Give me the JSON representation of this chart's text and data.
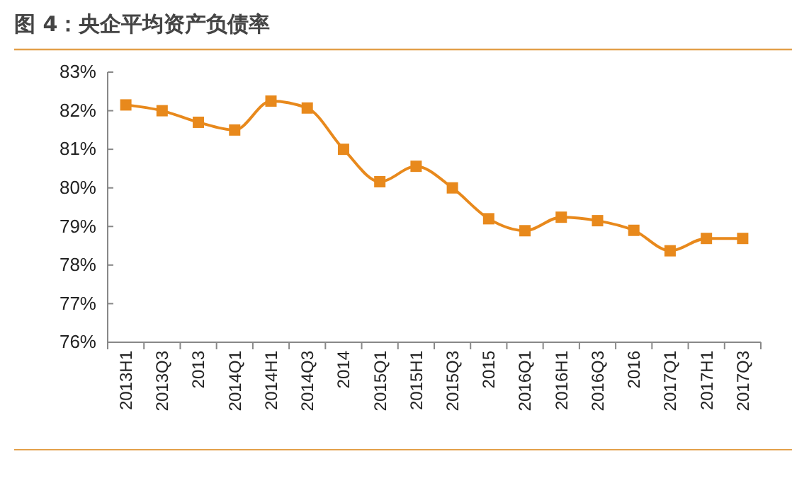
{
  "chart_data": {
    "type": "line",
    "title": "图 4：央企平均资产负债率",
    "categories": [
      "2013H1",
      "2013Q3",
      "2013",
      "2014Q1",
      "2014H1",
      "2014Q3",
      "2014",
      "2015Q1",
      "2015H1",
      "2015Q3",
      "2015",
      "2016Q1",
      "2016H1",
      "2016Q3",
      "2016",
      "2017Q1",
      "2017H1",
      "2017Q3"
    ],
    "series": [
      {
        "color": "#e8891c",
        "values": [
          82.15,
          82.0,
          81.7,
          81.5,
          82.25,
          82.07,
          81.0,
          80.16,
          80.56,
          80.0,
          79.2,
          78.89,
          79.24,
          79.15,
          78.9,
          78.37,
          78.69,
          78.69
        ]
      }
    ],
    "ylim": [
      76,
      83
    ],
    "yticks": [
      {
        "value": 76,
        "label": "76%"
      },
      {
        "value": 77,
        "label": "77%"
      },
      {
        "value": 78,
        "label": "78%"
      },
      {
        "value": 79,
        "label": "79%"
      },
      {
        "value": 80,
        "label": "80%"
      },
      {
        "value": 81,
        "label": "81%"
      },
      {
        "value": 82,
        "label": "82%"
      },
      {
        "value": 83,
        "label": "83%"
      }
    ],
    "marker": "square",
    "line_style": "solid"
  }
}
